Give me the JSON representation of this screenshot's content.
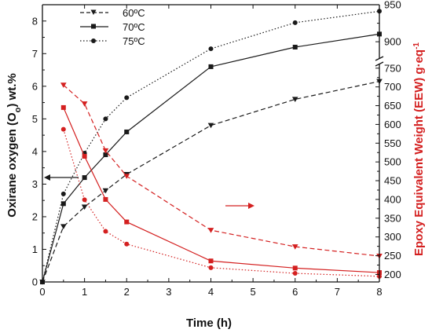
{
  "chart_data": {
    "type": "line",
    "xlabel": "Time (h)",
    "ylabel_left": {
      "main": "Oxirane oxygen (O",
      "sub": "o",
      "tail": ") wt.%"
    },
    "ylabel_right": {
      "main": "Epoxy Equivalent Weight (EEW) g·eq",
      "sup": "-1"
    },
    "xlim": [
      0,
      8
    ],
    "ylim_left": [
      0,
      8.5
    ],
    "right_axis": {
      "lower_range": [
        180,
        760
      ],
      "upper_range": [
        880,
        950
      ],
      "break": true
    },
    "x_ticks": [
      0,
      1,
      2,
      3,
      4,
      5,
      6,
      7,
      8
    ],
    "y_left_ticks": [
      0,
      1,
      2,
      3,
      4,
      5,
      6,
      7,
      8
    ],
    "y_right_ticks_lower": [
      200,
      250,
      300,
      350,
      400,
      450,
      500,
      550,
      600,
      650,
      700,
      750
    ],
    "y_right_ticks_upper": [
      900,
      950
    ],
    "legend": {
      "placement": "top-left",
      "entries": [
        "60ºC",
        "70ºC",
        "75ºC"
      ]
    },
    "colors": {
      "oxirane": "#1a1a1a",
      "eew": "#d42020"
    },
    "oxirane_series": [
      {
        "name": "60ºC",
        "line": "dashed",
        "marker": "triangle-down",
        "x": [
          0,
          0.5,
          1,
          1.5,
          2,
          4,
          6,
          8
        ],
        "y": [
          0,
          1.7,
          2.3,
          2.8,
          3.3,
          4.8,
          5.6,
          6.15
        ]
      },
      {
        "name": "70ºC",
        "line": "solid",
        "marker": "square",
        "x": [
          0,
          0.5,
          1,
          1.5,
          2,
          4,
          6,
          8
        ],
        "y": [
          0,
          2.4,
          3.2,
          3.9,
          4.6,
          6.6,
          7.2,
          7.6
        ]
      },
      {
        "name": "75ºC",
        "line": "dotted",
        "marker": "circle",
        "x": [
          0,
          0.5,
          1,
          1.5,
          2,
          4,
          6,
          8
        ],
        "y": [
          0,
          2.7,
          3.95,
          5.0,
          5.65,
          7.15,
          7.95,
          8.3
        ]
      }
    ],
    "eew_series": [
      {
        "name": "60ºC",
        "line": "dashed",
        "marker": "triangle-down",
        "x": [
          0.5,
          1,
          1.5,
          2,
          4,
          6,
          8
        ],
        "y": [
          705,
          655,
          530,
          462,
          318,
          274,
          249
        ]
      },
      {
        "name": "70ºC",
        "line": "solid",
        "marker": "square",
        "x": [
          0.5,
          1,
          1.5,
          2,
          4,
          6,
          8
        ],
        "y": [
          645,
          515,
          400,
          340,
          236,
          217,
          205
        ]
      },
      {
        "name": "75ºC",
        "line": "dotted",
        "marker": "circle",
        "x": [
          0.5,
          1,
          1.5,
          2,
          4,
          6,
          8
        ],
        "y": [
          587,
          399,
          315,
          281,
          218,
          203,
          195
        ]
      }
    ]
  }
}
